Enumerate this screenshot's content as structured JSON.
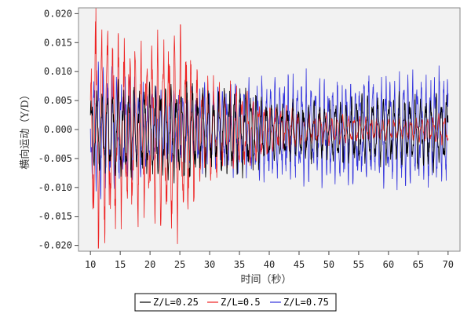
{
  "chart_data": {
    "type": "line",
    "title": "",
    "xlabel": "时间（秒）",
    "ylabel": "横向运动（Y/D）",
    "xlim": [
      8,
      72
    ],
    "ylim": [
      -0.021,
      0.021
    ],
    "xticks": [
      10,
      15,
      20,
      25,
      30,
      35,
      40,
      45,
      50,
      55,
      60,
      65,
      70
    ],
    "yticks": [
      0.02,
      0.015,
      0.01,
      0.005,
      0.0,
      -0.005,
      -0.01,
      -0.015,
      -0.02
    ],
    "ytick_labels": [
      "0.020",
      "0.015",
      "0.010",
      "0.005",
      "0.000",
      "-0.005",
      "-0.010",
      "-0.015",
      "-0.020"
    ],
    "xtick_labels": [
      "10",
      "15",
      "20",
      "25",
      "30",
      "35",
      "40",
      "45",
      "50",
      "55",
      "60",
      "65",
      "70"
    ],
    "grid": false,
    "legend_position": "bottom",
    "background": "#f2f2f2",
    "x_start": 10,
    "x_end": 70,
    "series": [
      {
        "name": "Z/L=0.25",
        "color": "#000000",
        "period": 0.9,
        "envelope": [
          [
            10,
            0.0055
          ],
          [
            12,
            0.0065
          ],
          [
            15,
            0.0065
          ],
          [
            20,
            0.0065
          ],
          [
            25,
            0.0075
          ],
          [
            30,
            0.006
          ],
          [
            35,
            0.0065
          ],
          [
            40,
            0.0045
          ],
          [
            45,
            0.004
          ],
          [
            50,
            0.0045
          ],
          [
            55,
            0.005
          ],
          [
            60,
            0.005
          ],
          [
            65,
            0.005
          ],
          [
            70,
            0.0058
          ]
        ],
        "center": -0.0003
      },
      {
        "name": "Z/L=0.5",
        "color": "#ee2222",
        "period": 0.95,
        "envelope": [
          [
            10,
            0.012
          ],
          [
            11,
            0.019
          ],
          [
            12,
            0.016
          ],
          [
            15,
            0.014
          ],
          [
            20,
            0.012
          ],
          [
            25,
            0.016
          ],
          [
            28,
            0.008
          ],
          [
            35,
            0.006
          ],
          [
            40,
            0.0035
          ],
          [
            45,
            0.0028
          ],
          [
            50,
            0.0022
          ],
          [
            55,
            0.0018
          ],
          [
            60,
            0.0016
          ],
          [
            65,
            0.0016
          ],
          [
            70,
            0.0022
          ]
        ],
        "center": 0.0
      },
      {
        "name": "Z/L=0.75",
        "color": "#3333dd",
        "period": 0.75,
        "envelope": [
          [
            10,
            0.008
          ],
          [
            12,
            0.0095
          ],
          [
            15,
            0.008
          ],
          [
            20,
            0.0065
          ],
          [
            25,
            0.0055
          ],
          [
            30,
            0.006
          ],
          [
            35,
            0.0065
          ],
          [
            40,
            0.0075
          ],
          [
            45,
            0.0078
          ],
          [
            50,
            0.0075
          ],
          [
            55,
            0.008
          ],
          [
            60,
            0.008
          ],
          [
            65,
            0.0082
          ],
          [
            70,
            0.0085
          ]
        ],
        "center": 0.0
      }
    ]
  }
}
